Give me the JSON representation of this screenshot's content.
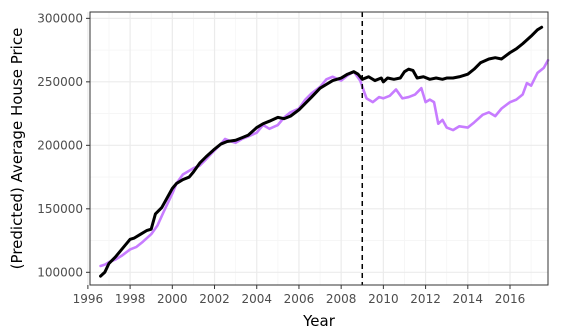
{
  "chart_data": {
    "type": "line",
    "title": "",
    "xlabel": "Year",
    "ylabel": "(Predicted) Average House Price",
    "xlim": [
      1996.1,
      2017.8
    ],
    "ylim": [
      90000,
      305000
    ],
    "x_ticks": [
      1996,
      1998,
      2000,
      2002,
      2004,
      2006,
      2008,
      2010,
      2012,
      2014,
      2016
    ],
    "x_tick_labels": [
      "1996",
      "1998",
      "2000",
      "2002",
      "2004",
      "2006",
      "2008",
      "2010",
      "2012",
      "2014",
      "2016"
    ],
    "y_ticks": [
      100000,
      150000,
      200000,
      250000,
      300000
    ],
    "y_tick_labels": [
      "100000",
      "150000",
      "200000",
      "250000",
      "300000"
    ],
    "grid": true,
    "legend": "none",
    "vline": {
      "x": 2009.0,
      "style": "dashed",
      "color": "#000000"
    },
    "colors": {
      "actual": "#000000",
      "predicted": "#c77cff",
      "grid_major": "#ebebeb",
      "grid_minor": "#f5f5f5",
      "panel_border": "#333333"
    },
    "series": [
      {
        "color": "#000000",
        "points": [
          [
            1996.6,
            97000
          ],
          [
            1996.8,
            100000
          ],
          [
            1997.0,
            107000
          ],
          [
            1997.3,
            112000
          ],
          [
            1997.6,
            118000
          ],
          [
            1998.0,
            126000
          ],
          [
            1998.2,
            127000
          ],
          [
            1998.5,
            130000
          ],
          [
            1998.8,
            133000
          ],
          [
            1999.0,
            134000
          ],
          [
            1999.2,
            146000
          ],
          [
            1999.5,
            151000
          ],
          [
            1999.8,
            160000
          ],
          [
            2000.0,
            166000
          ],
          [
            2000.2,
            170000
          ],
          [
            2000.5,
            173000
          ],
          [
            2000.8,
            175000
          ],
          [
            2001.0,
            179000
          ],
          [
            2001.3,
            186000
          ],
          [
            2001.6,
            191000
          ],
          [
            2002.0,
            197000
          ],
          [
            2002.3,
            201000
          ],
          [
            2002.6,
            203000
          ],
          [
            2003.0,
            204000
          ],
          [
            2003.3,
            206000
          ],
          [
            2003.6,
            208000
          ],
          [
            2004.0,
            214000
          ],
          [
            2004.3,
            217000
          ],
          [
            2004.6,
            219000
          ],
          [
            2005.0,
            222000
          ],
          [
            2005.3,
            221000
          ],
          [
            2005.6,
            223000
          ],
          [
            2006.0,
            228000
          ],
          [
            2006.3,
            233000
          ],
          [
            2006.6,
            238000
          ],
          [
            2007.0,
            245000
          ],
          [
            2007.3,
            248000
          ],
          [
            2007.6,
            251000
          ],
          [
            2008.0,
            253000
          ],
          [
            2008.3,
            256000
          ],
          [
            2008.6,
            258000
          ],
          [
            2008.8,
            256000
          ],
          [
            2009.0,
            252000
          ],
          [
            2009.3,
            254000
          ],
          [
            2009.6,
            251000
          ],
          [
            2009.9,
            253000
          ],
          [
            2010.0,
            250000
          ],
          [
            2010.2,
            253000
          ],
          [
            2010.5,
            252000
          ],
          [
            2010.8,
            253000
          ],
          [
            2011.0,
            258000
          ],
          [
            2011.2,
            260000
          ],
          [
            2011.4,
            259000
          ],
          [
            2011.6,
            253000
          ],
          [
            2011.9,
            254000
          ],
          [
            2012.2,
            252000
          ],
          [
            2012.5,
            253000
          ],
          [
            2012.8,
            252000
          ],
          [
            2013.0,
            253000
          ],
          [
            2013.3,
            253000
          ],
          [
            2013.6,
            254000
          ],
          [
            2014.0,
            256000
          ],
          [
            2014.3,
            260000
          ],
          [
            2014.6,
            265000
          ],
          [
            2015.0,
            268000
          ],
          [
            2015.3,
            269000
          ],
          [
            2015.6,
            268000
          ],
          [
            2016.0,
            273000
          ],
          [
            2016.3,
            276000
          ],
          [
            2016.6,
            280000
          ],
          [
            2017.0,
            286000
          ],
          [
            2017.3,
            291000
          ],
          [
            2017.5,
            293000
          ]
        ]
      },
      {
        "color": "#c77cff",
        "points": [
          [
            1996.6,
            105000
          ],
          [
            1996.8,
            106000
          ],
          [
            1997.0,
            108000
          ],
          [
            1997.3,
            110000
          ],
          [
            1997.6,
            113000
          ],
          [
            1998.0,
            118000
          ],
          [
            1998.3,
            120000
          ],
          [
            1998.6,
            124000
          ],
          [
            1999.0,
            130000
          ],
          [
            1999.3,
            137000
          ],
          [
            1999.6,
            148000
          ],
          [
            2000.0,
            162000
          ],
          [
            2000.2,
            170000
          ],
          [
            2000.5,
            177000
          ],
          [
            2000.8,
            180000
          ],
          [
            2001.0,
            182000
          ],
          [
            2001.3,
            184000
          ],
          [
            2001.6,
            189000
          ],
          [
            2002.0,
            196000
          ],
          [
            2002.3,
            201000
          ],
          [
            2002.5,
            205000
          ],
          [
            2002.8,
            203000
          ],
          [
            2003.0,
            202000
          ],
          [
            2003.3,
            205000
          ],
          [
            2003.6,
            207000
          ],
          [
            2004.0,
            210000
          ],
          [
            2004.3,
            216000
          ],
          [
            2004.6,
            213000
          ],
          [
            2005.0,
            216000
          ],
          [
            2005.3,
            222000
          ],
          [
            2005.6,
            226000
          ],
          [
            2006.0,
            229000
          ],
          [
            2006.3,
            236000
          ],
          [
            2006.6,
            241000
          ],
          [
            2007.0,
            246000
          ],
          [
            2007.3,
            252000
          ],
          [
            2007.6,
            254000
          ],
          [
            2008.0,
            251000
          ],
          [
            2008.3,
            255000
          ],
          [
            2008.6,
            258000
          ],
          [
            2008.9,
            251000
          ],
          [
            2009.2,
            237000
          ],
          [
            2009.5,
            234000
          ],
          [
            2009.8,
            238000
          ],
          [
            2010.0,
            237000
          ],
          [
            2010.3,
            239000
          ],
          [
            2010.6,
            244000
          ],
          [
            2010.9,
            237000
          ],
          [
            2011.2,
            238000
          ],
          [
            2011.5,
            240000
          ],
          [
            2011.8,
            245000
          ],
          [
            2012.0,
            234000
          ],
          [
            2012.2,
            236000
          ],
          [
            2012.4,
            234000
          ],
          [
            2012.6,
            217000
          ],
          [
            2012.8,
            220000
          ],
          [
            2013.0,
            214000
          ],
          [
            2013.3,
            212000
          ],
          [
            2013.6,
            215000
          ],
          [
            2014.0,
            214000
          ],
          [
            2014.3,
            218000
          ],
          [
            2014.7,
            224000
          ],
          [
            2015.0,
            226000
          ],
          [
            2015.3,
            223000
          ],
          [
            2015.6,
            229000
          ],
          [
            2016.0,
            234000
          ],
          [
            2016.3,
            236000
          ],
          [
            2016.6,
            240000
          ],
          [
            2016.8,
            249000
          ],
          [
            2017.0,
            247000
          ],
          [
            2017.3,
            257000
          ],
          [
            2017.6,
            261000
          ],
          [
            2017.8,
            267000
          ]
        ]
      }
    ]
  }
}
